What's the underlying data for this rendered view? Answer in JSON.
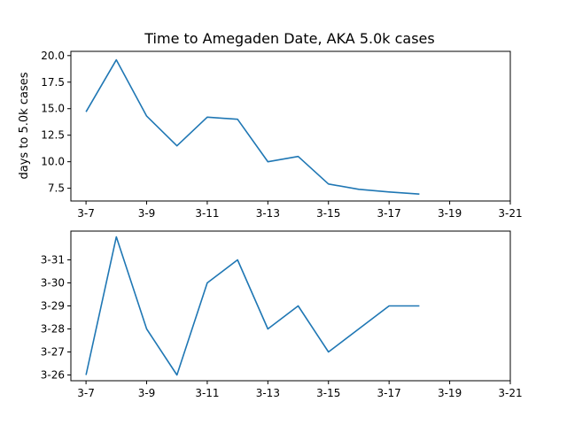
{
  "chart_data": [
    {
      "type": "line",
      "title": "Time to Amegaden Date, AKA 5.0k cases",
      "xlabel": "",
      "ylabel": "days to 5.0k cases",
      "x_ticks": [
        "3-7",
        "3-9",
        "3-11",
        "3-13",
        "3-15",
        "3-17",
        "3-19",
        "3-21"
      ],
      "y_ticks": [
        "7.5",
        "10.0",
        "12.5",
        "15.0",
        "17.5",
        "20.0"
      ],
      "xlim": [
        "3-6.5",
        "3-21"
      ],
      "ylim": [
        6.3,
        20.4
      ],
      "grid": false,
      "series": [
        {
          "color": "#1f77b4",
          "x": [
            "3-7",
            "3-8",
            "3-9",
            "3-10",
            "3-11",
            "3-12",
            "3-13",
            "3-14",
            "3-15",
            "3-16",
            "3-17",
            "3-18"
          ],
          "values": [
            14.7,
            19.6,
            14.3,
            11.5,
            14.2,
            14.0,
            10.0,
            10.5,
            7.9,
            7.4,
            7.15,
            6.95
          ]
        }
      ]
    },
    {
      "type": "line",
      "title": "",
      "xlabel": "",
      "ylabel": "",
      "x_ticks": [
        "3-7",
        "3-9",
        "3-11",
        "3-13",
        "3-15",
        "3-17",
        "3-19",
        "3-21"
      ],
      "y_ticks": [
        "3-26",
        "3-27",
        "3-28",
        "3-29",
        "3-30",
        "3-31"
      ],
      "xlim": [
        "3-6.5",
        "3-21"
      ],
      "ylim": [
        "3-25.75",
        "3-32.25"
      ],
      "grid": false,
      "series": [
        {
          "color": "#1f77b4",
          "x": [
            "3-7",
            "3-8",
            "3-9",
            "3-10",
            "3-11",
            "3-12",
            "3-13",
            "3-14",
            "3-15",
            "3-16",
            "3-17",
            "3-18"
          ],
          "values": [
            "3-26",
            "4-1",
            "3-28",
            "3-26",
            "3-30",
            "3-31",
            "3-28",
            "3-29",
            "3-27",
            "3-28",
            "3-29",
            "3-29"
          ]
        }
      ]
    }
  ]
}
